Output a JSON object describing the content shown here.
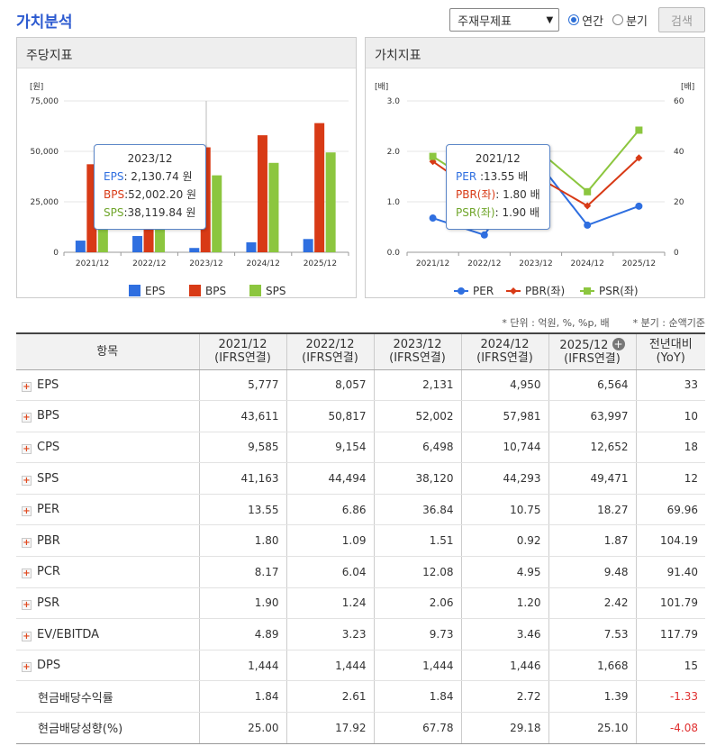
{
  "page": {
    "title": "가치분석",
    "select_value": "주재무제표",
    "radio_annual": "연간",
    "radio_quarter": "분기",
    "search_label": "검색"
  },
  "left_panel": {
    "title": "주당지표",
    "tooltip": {
      "title": "2023/12",
      "rows": [
        {
          "name": "EPS",
          "value": ":  2,130.74 원"
        },
        {
          "name": "BPS",
          "value": ":52,002.20 원"
        },
        {
          "name": "SPS",
          "value": ":38,119.84 원"
        }
      ]
    }
  },
  "right_panel": {
    "title": "가치지표",
    "tooltip": {
      "title": "2021/12",
      "rows": [
        {
          "name": "PER",
          "value": "      :13.55 배"
        },
        {
          "name": "PBR(좌)",
          "value": ":  1.80 배"
        },
        {
          "name": "PSR(좌)",
          "value": ":  1.90 배"
        }
      ]
    }
  },
  "chart_data": [
    {
      "type": "bar",
      "title": "주당지표",
      "ylabel": "[원]",
      "categories": [
        "2021/12",
        "2022/12",
        "2023/12",
        "2024/12",
        "2025/12"
      ],
      "series": [
        {
          "name": "EPS",
          "color": "#2f6fe0",
          "values": [
            5777,
            8057,
            2131,
            4950,
            6564
          ]
        },
        {
          "name": "BPS",
          "color": "#d83a16",
          "values": [
            43611,
            50817,
            52002,
            57981,
            63997
          ]
        },
        {
          "name": "SPS",
          "color": "#8cc63f",
          "values": [
            41163,
            44494,
            38120,
            44293,
            49471
          ]
        }
      ],
      "ylim": [
        0,
        75000
      ],
      "yticks": [
        "75,000",
        "50,000",
        "25,000",
        "0"
      ],
      "grid": true,
      "legend": "bottom"
    },
    {
      "type": "line",
      "title": "가치지표",
      "ylabel_left": "[배]",
      "ylabel_right": "[배]",
      "categories": [
        "2021/12",
        "2022/12",
        "2023/12",
        "2024/12",
        "2025/12"
      ],
      "series": [
        {
          "name": "PER",
          "axis": "right",
          "color": "#2f6fe0",
          "marker": "circle",
          "values": [
            13.55,
            6.86,
            36.84,
            10.75,
            18.27
          ]
        },
        {
          "name": "PBR(좌)",
          "axis": "left",
          "color": "#d83a16",
          "marker": "diamond",
          "values": [
            1.8,
            1.09,
            1.51,
            0.92,
            1.87
          ]
        },
        {
          "name": "PSR(좌)",
          "axis": "left",
          "color": "#8cc63f",
          "marker": "square",
          "values": [
            1.9,
            1.24,
            2.06,
            1.2,
            2.42
          ]
        }
      ],
      "ylim_left": [
        0,
        3
      ],
      "ylim_right": [
        0,
        60
      ],
      "yticks_left": [
        "3.0",
        "2.0",
        "1.0",
        "0.0"
      ],
      "yticks_right": [
        "60",
        "40",
        "20",
        "0"
      ],
      "grid": true,
      "legend": "bottom"
    }
  ],
  "notes": {
    "unit": "* 단위 : 억원, %, %p, 배",
    "basis": "* 분기 : 순액기준"
  },
  "table": {
    "header_item": "항목",
    "columns": [
      {
        "line1": "2021/12",
        "line2": "(IFRS연결)"
      },
      {
        "line1": "2022/12",
        "line2": "(IFRS연결)"
      },
      {
        "line1": "2023/12",
        "line2": "(IFRS연결)"
      },
      {
        "line1": "2024/12",
        "line2": "(IFRS연결)"
      },
      {
        "line1": "2025/12",
        "line2": "(IFRS연결)"
      },
      {
        "line1": "전년대비",
        "line2": "(YoY)"
      }
    ],
    "rows": [
      {
        "label": "EPS",
        "expand": true,
        "values": [
          "5,777",
          "8,057",
          "2,131",
          "4,950",
          "6,564",
          "33"
        ]
      },
      {
        "label": "BPS",
        "expand": true,
        "values": [
          "43,611",
          "50,817",
          "52,002",
          "57,981",
          "63,997",
          "10"
        ]
      },
      {
        "label": "CPS",
        "expand": true,
        "values": [
          "9,585",
          "9,154",
          "6,498",
          "10,744",
          "12,652",
          "18"
        ]
      },
      {
        "label": "SPS",
        "expand": true,
        "values": [
          "41,163",
          "44,494",
          "38,120",
          "44,293",
          "49,471",
          "12"
        ]
      },
      {
        "label": "PER",
        "expand": true,
        "values": [
          "13.55",
          "6.86",
          "36.84",
          "10.75",
          "18.27",
          "69.96"
        ]
      },
      {
        "label": "PBR",
        "expand": true,
        "values": [
          "1.80",
          "1.09",
          "1.51",
          "0.92",
          "1.87",
          "104.19"
        ]
      },
      {
        "label": "PCR",
        "expand": true,
        "values": [
          "8.17",
          "6.04",
          "12.08",
          "4.95",
          "9.48",
          "91.40"
        ]
      },
      {
        "label": "PSR",
        "expand": true,
        "values": [
          "1.90",
          "1.24",
          "2.06",
          "1.20",
          "2.42",
          "101.79"
        ]
      },
      {
        "label": "EV/EBITDA",
        "expand": true,
        "values": [
          "4.89",
          "3.23",
          "9.73",
          "3.46",
          "7.53",
          "117.79"
        ]
      },
      {
        "label": "DPS",
        "expand": true,
        "values": [
          "1,444",
          "1,444",
          "1,444",
          "1,446",
          "1,668",
          "15"
        ]
      },
      {
        "label": "현금배당수익률",
        "expand": false,
        "values": [
          "1.84",
          "2.61",
          "1.84",
          "2.72",
          "1.39",
          "-1.33"
        ]
      },
      {
        "label": "현금배당성향(%)",
        "expand": false,
        "values": [
          "25.00",
          "17.92",
          "67.78",
          "29.18",
          "25.10",
          "-4.08"
        ]
      }
    ]
  }
}
